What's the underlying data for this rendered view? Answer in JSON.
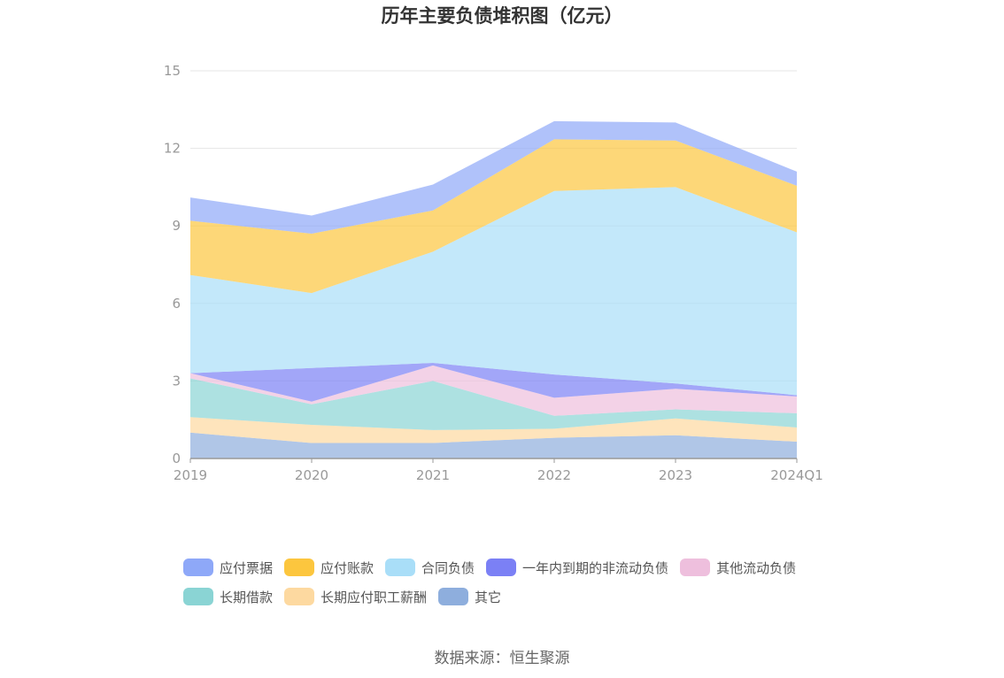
{
  "chart_data": {
    "type": "area",
    "stacked": true,
    "title": "历年主要负债堆积图（亿元）",
    "categories": [
      "2019",
      "2020",
      "2021",
      "2022",
      "2023",
      "2024Q1"
    ],
    "ylim": [
      0,
      15
    ],
    "yticks": [
      "0",
      "3",
      "6",
      "9",
      "12",
      "15"
    ],
    "grid": true,
    "legend_position": "bottom",
    "series": [
      {
        "name": "其它",
        "color": "#8eaedd",
        "values": [
          1.0,
          0.6,
          0.6,
          0.8,
          0.9,
          0.65
        ]
      },
      {
        "name": "长期应付职工薪酬",
        "color": "#fdd9a0",
        "values": [
          0.6,
          0.7,
          0.5,
          0.35,
          0.65,
          0.55
        ]
      },
      {
        "name": "长期借款",
        "color": "#8ad4d4",
        "values": [
          1.5,
          0.8,
          1.9,
          0.5,
          0.35,
          0.55
        ]
      },
      {
        "name": "其他流动负债",
        "color": "#eebfdd",
        "values": [
          0.2,
          0.1,
          0.6,
          0.7,
          0.8,
          0.65
        ]
      },
      {
        "name": "一年内到期的非流动负债",
        "color": "#7b80f5",
        "values": [
          0.0,
          1.3,
          0.1,
          0.9,
          0.2,
          0.05
        ]
      },
      {
        "name": "合同负债",
        "color": "#a9def8",
        "values": [
          3.8,
          2.9,
          4.3,
          7.1,
          7.6,
          6.3
        ]
      },
      {
        "name": "应付账款",
        "color": "#fcc63e",
        "values": [
          2.1,
          2.3,
          1.6,
          2.0,
          1.8,
          1.8
        ]
      },
      {
        "name": "应付票据",
        "color": "#8ea8f8",
        "values": [
          0.9,
          0.7,
          1.0,
          0.7,
          0.7,
          0.55
        ]
      }
    ]
  },
  "legend_order": [
    {
      "name": "应付票据",
      "color": "#8ea8f8"
    },
    {
      "name": "应付账款",
      "color": "#fcc63e"
    },
    {
      "name": "合同负债",
      "color": "#a9def8"
    },
    {
      "name": "一年内到期的非流动负债",
      "color": "#7b80f5"
    },
    {
      "name": "其他流动负债",
      "color": "#eebfdd"
    },
    {
      "name": "长期借款",
      "color": "#8ad4d4"
    },
    {
      "name": "长期应付职工薪酬",
      "color": "#fdd9a0"
    },
    {
      "name": "其它",
      "color": "#8eaedd"
    }
  ],
  "source": "数据来源：恒生聚源"
}
